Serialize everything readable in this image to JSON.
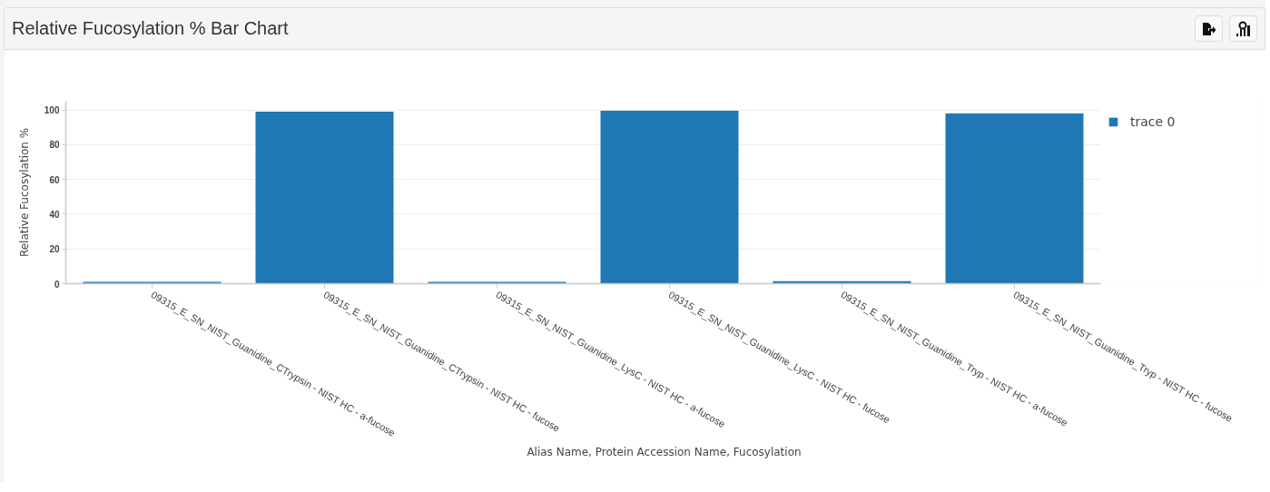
{
  "chart_data": {
    "type": "bar",
    "title": "Relative Fucosylation % Bar Chart",
    "xlabel": "Alias Name, Protein Accession Name, Fucosylation",
    "ylabel": "Relative Fucosylation %",
    "categories": [
      "09315_E_SN_NIST_Guanidine_CTrypsin - NIST HC - a-fucose",
      "09315_E_SN_NIST_Guanidine_CTrypsin - NIST HC - fucose",
      "09315_E_SN_NIST_Guanidine_LysC - NIST HC - a-fucose",
      "09315_E_SN_NIST_Guanidine_LysC - NIST HC - fucose",
      "09315_E_SN_NIST_Guanidine_Tryp - NIST HC - a-fucose",
      "09315_E_SN_NIST_Guanidine_Tryp - NIST HC - fucose"
    ],
    "series": [
      {
        "name": "trace 0",
        "color": "#1f77b4",
        "values": [
          1,
          99,
          1,
          99.5,
          1.5,
          98
        ]
      }
    ],
    "ylim": [
      0,
      105
    ],
    "yticks": [
      0,
      20,
      40,
      60,
      80,
      100
    ],
    "grid": "y",
    "legend": "right"
  }
}
